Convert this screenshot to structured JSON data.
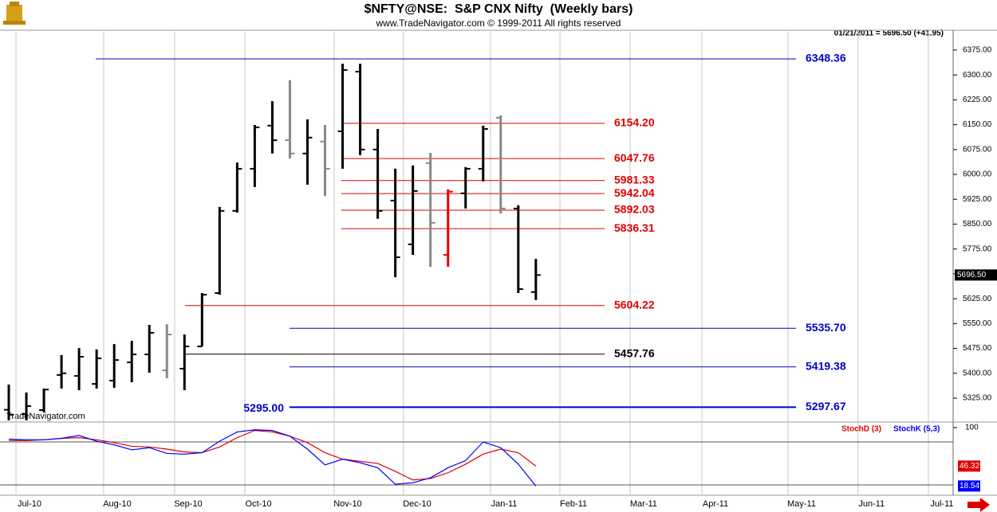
{
  "header": {
    "title": "$NFTY@NSE:  S&P CNX Nifty  (Weekly bars)",
    "subtitle": "www.TradeNavigator.com © 1999-2011 All rights reserved",
    "quote": "01/21/2011 = 5696.50 (+41.95)",
    "watermark": "TradeNavigator.com"
  },
  "chart_data": [
    {
      "type": "ohlc",
      "x": [
        0,
        1,
        2,
        3,
        4,
        5,
        6,
        7,
        8,
        9,
        10,
        11,
        12,
        13,
        14,
        15,
        16,
        17,
        18,
        19,
        20,
        21,
        22,
        23,
        24,
        25,
        26,
        27,
        28,
        29,
        30
      ],
      "open": [
        5290,
        5277,
        5289,
        5395,
        5392,
        5368,
        5378,
        5433,
        5457,
        5409,
        5414,
        5481,
        5642,
        5890,
        6017,
        6147,
        6103,
        6063,
        6099,
        6130,
        6310,
        6075,
        5921,
        5789,
        6034,
        5757,
        5943,
        6017,
        6171,
        5897,
        5645
      ],
      "high": [
        5366,
        5342,
        5354,
        5455,
        5476,
        5472,
        5488,
        5498,
        5546,
        5548,
        5517,
        5642,
        5902,
        6036,
        6149,
        6221,
        6284,
        6166,
        6149,
        6334,
        6334,
        6137,
        6017,
        6027,
        6065,
        5955,
        6022,
        6147,
        6178,
        5907,
        5745
      ],
      "low": [
        5258,
        5258,
        5282,
        5354,
        5349,
        5354,
        5356,
        5373,
        5402,
        5385,
        5349,
        5481,
        5637,
        5885,
        5962,
        6063,
        6048,
        5969,
        5935,
        6017,
        6058,
        5866,
        5690,
        5757,
        5721,
        5721,
        5897,
        5979,
        5882,
        5642,
        5621
      ],
      "close": [
        5275,
        5301,
        5351,
        5400,
        5450,
        5445,
        5440,
        5457,
        5522,
        5517,
        5481,
        5637,
        5890,
        6017,
        6142,
        6103,
        6063,
        6111,
        6017,
        6315,
        6075,
        5890,
        5750,
        5950,
        5854,
        5948,
        6017,
        6137,
        5897,
        5654,
        5696.5
      ],
      "colors": [
        "#000000",
        "#000000",
        "#000000",
        "#000000",
        "#000000",
        "#000000",
        "#000000",
        "#000000",
        "#000000",
        "#888888",
        "#000000",
        "#000000",
        "#000000",
        "#000000",
        "#000000",
        "#000000",
        "#888888",
        "#000000",
        "#888888",
        "#000000",
        "#000000",
        "#000000",
        "#000000",
        "#000000",
        "#888888",
        "#ee0000",
        "#000000",
        "#000000",
        "#888888",
        "#000000",
        "#000000"
      ],
      "xlim": [
        -0.5,
        53.75
      ],
      "ylim": [
        5253,
        6430
      ],
      "yticks": [
        {
          "value": 5325,
          "label": "5325.00"
        },
        {
          "value": 5400,
          "label": "5400.00"
        },
        {
          "value": 5475,
          "label": "5475.00"
        },
        {
          "value": 5550,
          "label": "5550.00"
        },
        {
          "value": 5625,
          "label": "5625.00"
        },
        {
          "value": 5700,
          "label": "5700.00"
        },
        {
          "value": 5775,
          "label": "5775.00"
        },
        {
          "value": 5850,
          "label": "5850.00"
        },
        {
          "value": 5925,
          "label": "5925.00"
        },
        {
          "value": 6000,
          "label": "6000.00"
        },
        {
          "value": 6075,
          "label": "6075.00"
        },
        {
          "value": 6150,
          "label": "6150.00"
        },
        {
          "value": 6225,
          "label": "6225.00"
        },
        {
          "value": 6300,
          "label": "6300.00"
        },
        {
          "value": 6375,
          "label": "6375.00"
        }
      ],
      "last_value": {
        "value": 5696.5,
        "label": "5696.50"
      },
      "levels": [
        {
          "value": 6348.36,
          "label": "6348.36",
          "color": "#0000cc"
        },
        {
          "value": 6154.2,
          "label": "6154.20",
          "color": "#e00000"
        },
        {
          "value": 6047.76,
          "label": "6047.76",
          "color": "#e00000"
        },
        {
          "value": 5981.33,
          "label": "5981.33",
          "color": "#e00000"
        },
        {
          "value": 5942.04,
          "label": "5942.04",
          "color": "#e00000"
        },
        {
          "value": 5892.03,
          "label": "5892.03",
          "color": "#e00000"
        },
        {
          "value": 5836.31,
          "label": "5836.31",
          "color": "#e00000"
        },
        {
          "value": 5604.22,
          "label": "5604.22",
          "color": "#e00000"
        },
        {
          "value": 5535.7,
          "label": "5535.70",
          "color": "#0000cc"
        },
        {
          "value": 5457.76,
          "label": "5457.76",
          "color": "#000000"
        },
        {
          "value": 5419.38,
          "label": "5419.38",
          "color": "#0000cc"
        },
        {
          "value": 5297.67,
          "label": "5297.67",
          "color": "#0000cc"
        },
        {
          "value": 5295,
          "label": "5295.00",
          "color": "#0000cc"
        }
      ]
    },
    {
      "type": "line",
      "x": [
        0,
        1,
        2,
        3,
        4,
        5,
        6,
        7,
        8,
        9,
        10,
        11,
        12,
        13,
        14,
        15,
        16,
        17,
        18,
        19,
        20,
        21,
        22,
        23,
        24,
        25,
        26,
        27,
        28,
        29,
        30
      ],
      "series": [
        {
          "name": "StochD (3)",
          "color": "#e00000",
          "values": [
            82,
            82,
            83,
            85,
            86,
            83,
            79,
            74,
            73,
            70,
            66,
            65,
            73,
            86,
            96,
            94,
            88,
            79,
            65,
            56,
            53,
            50,
            39,
            27,
            29,
            37,
            49,
            63,
            70,
            65,
            46.32
          ]
        },
        {
          "name": "StochK (5,3)",
          "color": "#0000ff",
          "values": [
            84,
            83,
            83,
            85,
            89,
            81,
            76,
            69,
            72,
            64,
            63,
            65,
            81,
            94,
            97,
            96,
            88,
            70,
            48,
            56,
            51,
            44,
            21,
            23,
            30,
            44,
            54,
            80,
            72,
            49,
            18.54
          ]
        }
      ],
      "xlim": [
        -0.5,
        53.75
      ],
      "ylim": [
        5.6,
        107.8
      ],
      "yticks": [
        100
      ],
      "levels": [
        80,
        20
      ],
      "xticks": [
        {
          "value": 0.41,
          "label": "Jul-10"
        },
        {
          "value": 5.4,
          "label": "Aug-10"
        },
        {
          "value": 9.44,
          "label": "Sep-10"
        },
        {
          "value": 13.44,
          "label": "Oct-10"
        },
        {
          "value": 18.52,
          "label": "Nov-10"
        },
        {
          "value": 22.47,
          "label": "Dec-10"
        },
        {
          "value": 27.42,
          "label": "Jan-11"
        },
        {
          "value": 31.37,
          "label": "Feb-11"
        },
        {
          "value": 35.36,
          "label": "Mar-11"
        },
        {
          "value": 39.45,
          "label": "Apr-11"
        },
        {
          "value": 44.35,
          "label": "May-11"
        },
        {
          "value": 48.34,
          "label": "Jun-11"
        },
        {
          "value": 52.34,
          "label": "Jul-11"
        }
      ]
    }
  ]
}
